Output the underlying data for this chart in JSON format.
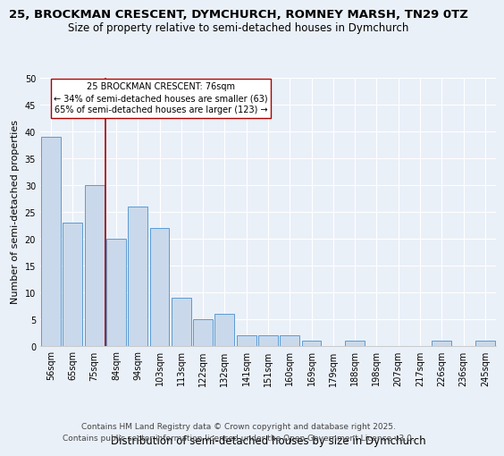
{
  "title": "25, BROCKMAN CRESCENT, DYMCHURCH, ROMNEY MARSH, TN29 0TZ",
  "subtitle": "Size of property relative to semi-detached houses in Dymchurch",
  "xlabel": "Distribution of semi-detached houses by size in Dymchurch",
  "ylabel": "Number of semi-detached properties",
  "categories": [
    "56sqm",
    "65sqm",
    "75sqm",
    "84sqm",
    "94sqm",
    "103sqm",
    "113sqm",
    "122sqm",
    "132sqm",
    "141sqm",
    "151sqm",
    "160sqm",
    "169sqm",
    "179sqm",
    "188sqm",
    "198sqm",
    "207sqm",
    "217sqm",
    "226sqm",
    "236sqm",
    "245sqm"
  ],
  "values": [
    39,
    23,
    30,
    20,
    26,
    22,
    9,
    5,
    6,
    2,
    2,
    2,
    1,
    0,
    1,
    0,
    0,
    0,
    1,
    0,
    1
  ],
  "bar_color": "#c9d9eb",
  "bar_edge_color": "#5b9bd5",
  "ylim": [
    0,
    50
  ],
  "yticks": [
    0,
    5,
    10,
    15,
    20,
    25,
    30,
    35,
    40,
    45,
    50
  ],
  "vline_x_index": 2.5,
  "vline_color": "#aa0000",
  "annotation_title": "25 BROCKMAN CRESCENT: 76sqm",
  "annotation_line1": "← 34% of semi-detached houses are smaller (63)",
  "annotation_line2": "65% of semi-detached houses are larger (123) →",
  "footer_line1": "Contains HM Land Registry data © Crown copyright and database right 2025.",
  "footer_line2": "Contains public sector information licensed under the Open Government Licence v3.0.",
  "bg_color": "#eaf0f8",
  "grid_color": "#ffffff",
  "title_fontsize": 9.5,
  "subtitle_fontsize": 8.5,
  "axis_label_fontsize": 8,
  "tick_fontsize": 7,
  "footer_fontsize": 6.5,
  "ann_fontsize": 7
}
